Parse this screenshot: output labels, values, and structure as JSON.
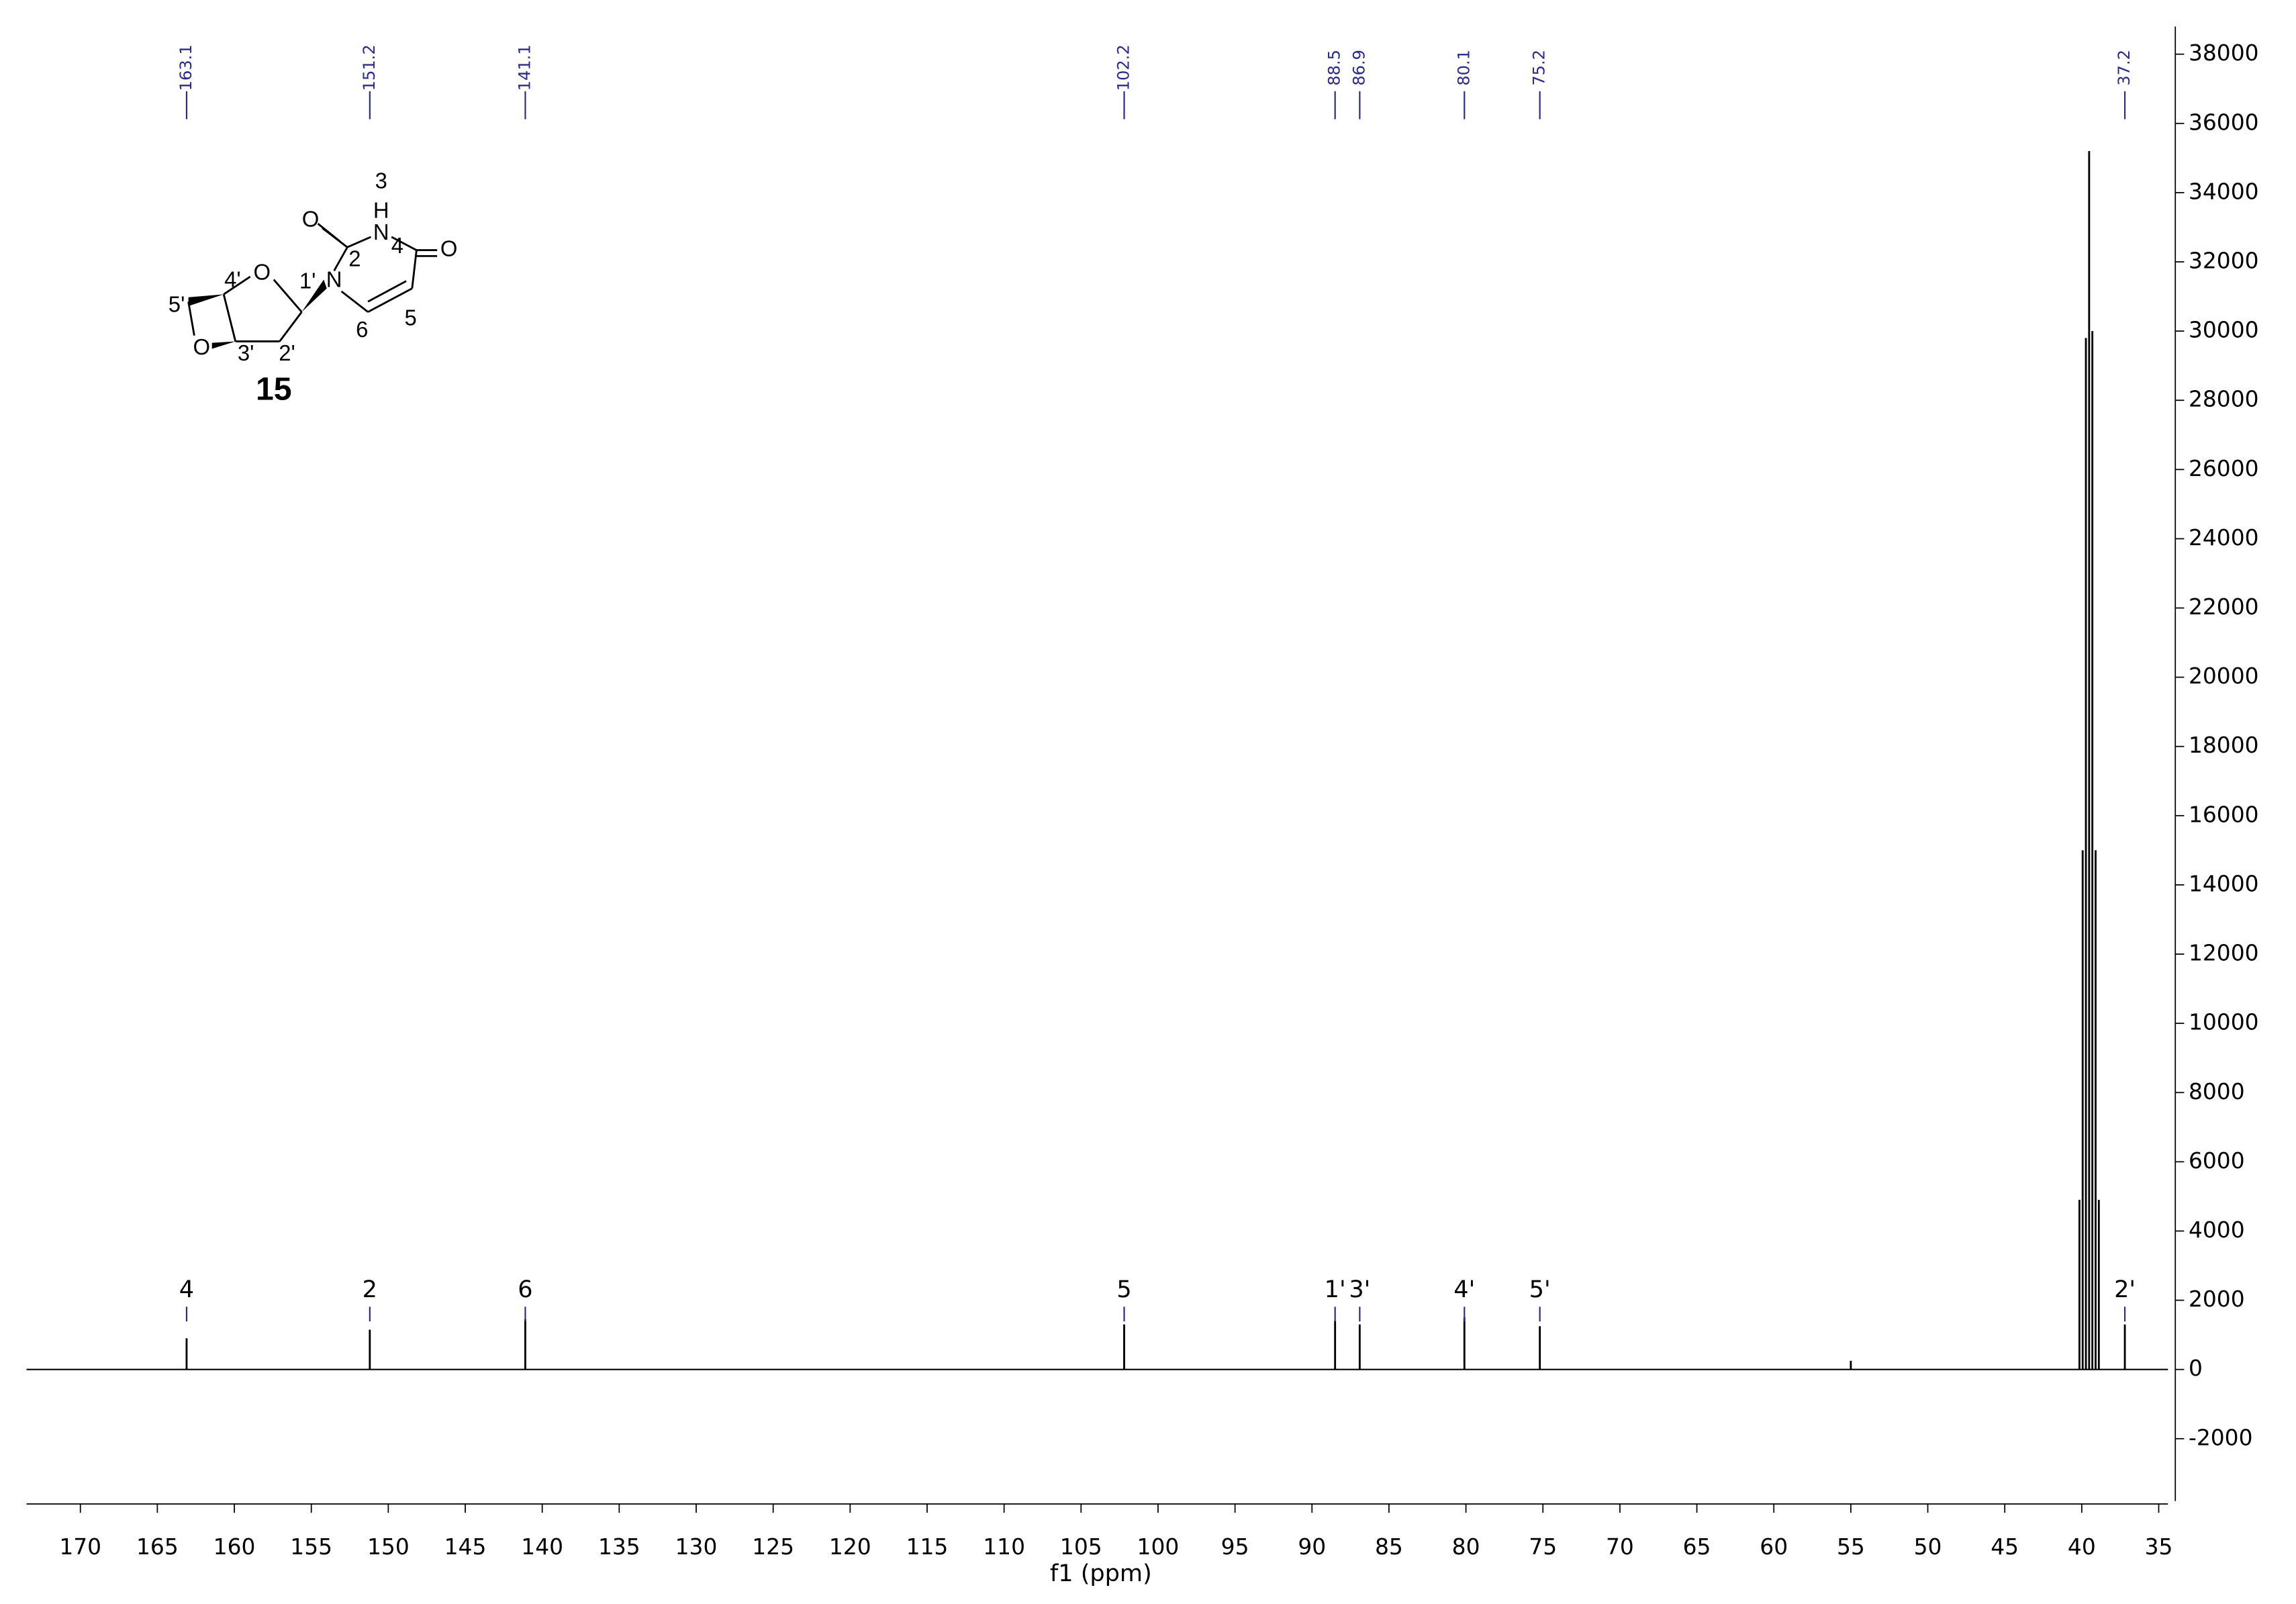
{
  "chart_data": {
    "type": "stem",
    "xlabel": "f1 (ppm)",
    "xlim": [
      173.5,
      34.4
    ],
    "xticks": [
      170,
      165,
      160,
      155,
      150,
      145,
      140,
      135,
      130,
      125,
      120,
      115,
      110,
      105,
      100,
      95,
      90,
      85,
      80,
      75,
      70,
      65,
      60,
      55,
      50,
      45,
      40,
      35
    ],
    "ylim": [
      -3800,
      38800
    ],
    "yticks": [
      -2000,
      0,
      2000,
      4000,
      6000,
      8000,
      10000,
      12000,
      14000,
      16000,
      18000,
      20000,
      22000,
      24000,
      26000,
      28000,
      30000,
      32000,
      34000,
      36000,
      38000
    ],
    "color": "#000000",
    "label_color": "#2b2b8a",
    "peaks": {
      "x": [
        163.1,
        151.2,
        141.1,
        102.2,
        88.5,
        86.9,
        80.1,
        75.2,
        37.2
      ],
      "values": [
        900,
        1150,
        1450,
        1300,
        1400,
        1300,
        1500,
        1250,
        1300
      ],
      "assignments": [
        "4",
        "2",
        "6",
        "5",
        "1'",
        "3'",
        "4'",
        "5'",
        "2'"
      ]
    },
    "other_peaks": {
      "x": [
        55.0,
        40.15,
        39.94,
        39.73,
        39.52,
        39.31,
        39.1,
        38.89
      ],
      "values": [
        250,
        4900,
        15000,
        29800,
        35200,
        30000,
        15000,
        4900
      ]
    }
  },
  "structure": {
    "labels": [
      "3",
      "H",
      "N",
      "O",
      "2",
      "4",
      "O",
      "N",
      "5",
      "6",
      "1'",
      "O",
      "4'",
      "5'",
      "O",
      "3'",
      "2'"
    ],
    "compound": "15"
  }
}
